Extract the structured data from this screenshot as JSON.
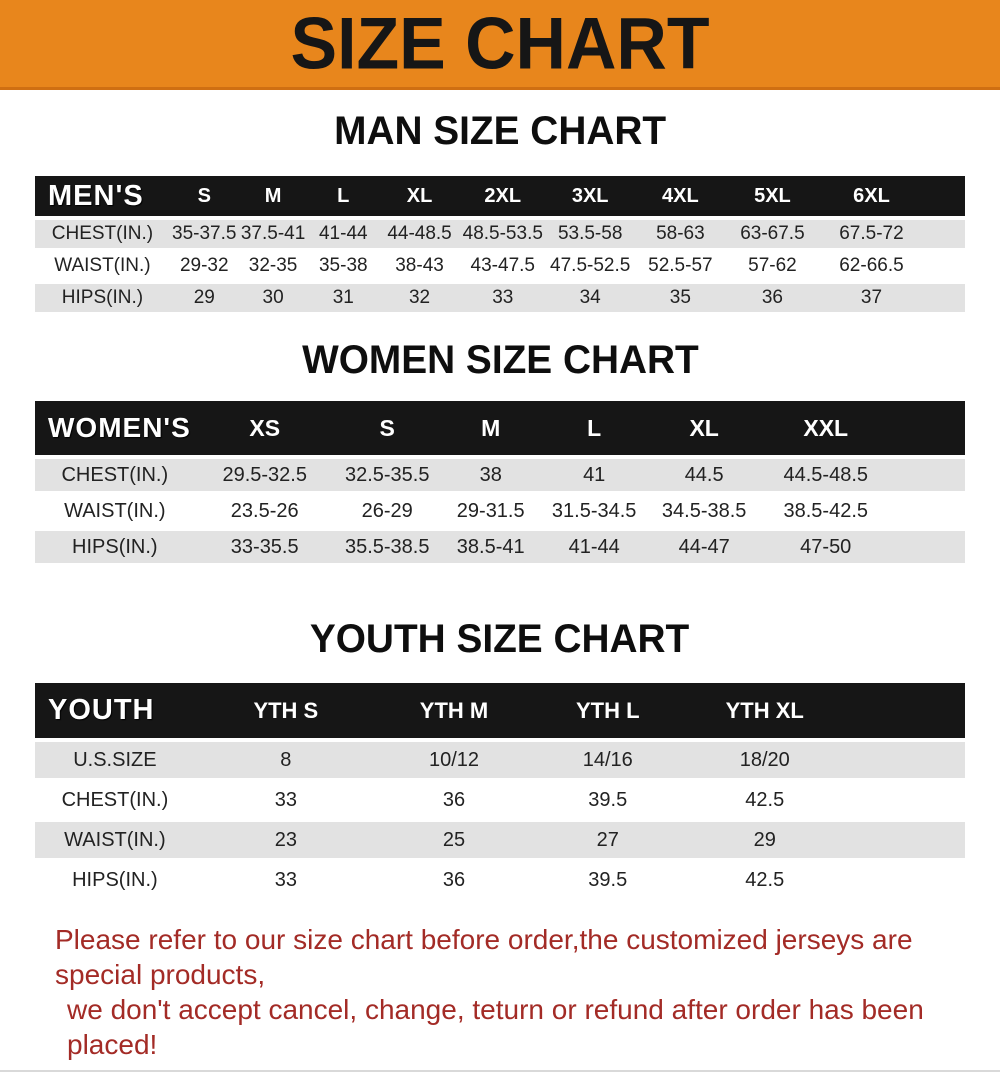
{
  "banner": {
    "title": "SIZE CHART",
    "bg_color": "#E8861C",
    "text_color": "#161616"
  },
  "chart_data": [
    {
      "type": "table",
      "title": "MAN SIZE CHART",
      "label_header": "MEN'S",
      "columns": [
        "S",
        "M",
        "L",
        "XL",
        "2XL",
        "3XL",
        "4XL",
        "5XL",
        "6XL"
      ],
      "rows": [
        {
          "label": "CHEST(IN.)",
          "values": [
            "35-37.5",
            "37.5-41",
            "41-44",
            "44-48.5",
            "48.5-53.5",
            "53.5-58",
            "58-63",
            "63-67.5",
            "67.5-72"
          ]
        },
        {
          "label": "WAIST(IN.)",
          "values": [
            "29-32",
            "32-35",
            "35-38",
            "38-43",
            "43-47.5",
            "47.5-52.5",
            "52.5-57",
            "57-62",
            "62-66.5"
          ]
        },
        {
          "label": "HIPS(IN.)",
          "values": [
            "29",
            "30",
            "31",
            "32",
            "33",
            "34",
            "35",
            "36",
            "37"
          ]
        }
      ]
    },
    {
      "type": "table",
      "title": "WOMEN SIZE CHART",
      "label_header": "WOMEN'S",
      "columns": [
        "XS",
        "S",
        "M",
        "L",
        "XL",
        "XXL"
      ],
      "rows": [
        {
          "label": "CHEST(IN.)",
          "values": [
            "29.5-32.5",
            "32.5-35.5",
            "38",
            "41",
            "44.5",
            "44.5-48.5"
          ]
        },
        {
          "label": "WAIST(IN.)",
          "values": [
            "23.5-26",
            "26-29",
            "29-31.5",
            "31.5-34.5",
            "34.5-38.5",
            "38.5-42.5"
          ]
        },
        {
          "label": "HIPS(IN.)",
          "values": [
            "33-35.5",
            "35.5-38.5",
            "38.5-41",
            "41-44",
            "44-47",
            "47-50"
          ]
        }
      ]
    },
    {
      "type": "table",
      "title": "YOUTH SIZE CHART",
      "label_header": "YOUTH",
      "columns": [
        "YTH S",
        "YTH M",
        "YTH L",
        "YTH XL"
      ],
      "rows": [
        {
          "label": "U.S.SIZE",
          "values": [
            "8",
            "10/12",
            "14/16",
            "18/20"
          ]
        },
        {
          "label": "CHEST(IN.)",
          "values": [
            "33",
            "36",
            "39.5",
            "42.5"
          ]
        },
        {
          "label": "WAIST(IN.)",
          "values": [
            "23",
            "25",
            "27",
            "29"
          ]
        },
        {
          "label": "HIPS(IN.)",
          "values": [
            "33",
            "36",
            "39.5",
            "42.5"
          ]
        }
      ]
    }
  ],
  "footer": {
    "lines": [
      "Please refer to our size chart before order,the customized jerseys are special products,",
      "we don't accept cancel, change, teturn or refund after order has been placed!"
    ],
    "color": "#A32B26"
  },
  "colors": {
    "banner_orange": "#E8861C",
    "header_black": "#161616",
    "row_gray": "#E2E2E2",
    "footer_red": "#A32B26"
  }
}
